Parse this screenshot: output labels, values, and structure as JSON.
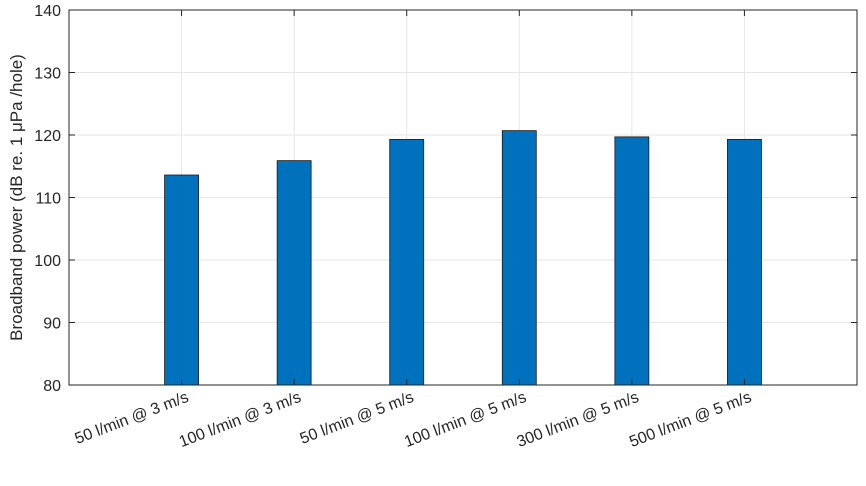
{
  "chart_data": {
    "type": "bar",
    "title": "",
    "xlabel": "",
    "ylabel": "Broadband power (dB re. 1 μPa /hole)",
    "categories": [
      "50 l/min @ 3 m/s",
      "100 l/min @ 3 m/s",
      "50 l/min @ 5 m/s",
      "100 l/min @ 5 m/s",
      "300 l/min @ 5 m/s",
      "500 l/min @ 5 m/s"
    ],
    "values": [
      113.6,
      115.9,
      119.3,
      120.7,
      119.7,
      119.3
    ],
    "ylim": [
      80,
      140
    ],
    "yticks": [
      80,
      90,
      100,
      110,
      120,
      130,
      140
    ],
    "grid": true,
    "colors": {
      "bar": "#0072BD",
      "bar_edge": "#1a1a1a",
      "grid": "#e6e6e6",
      "axis": "#262626"
    }
  }
}
